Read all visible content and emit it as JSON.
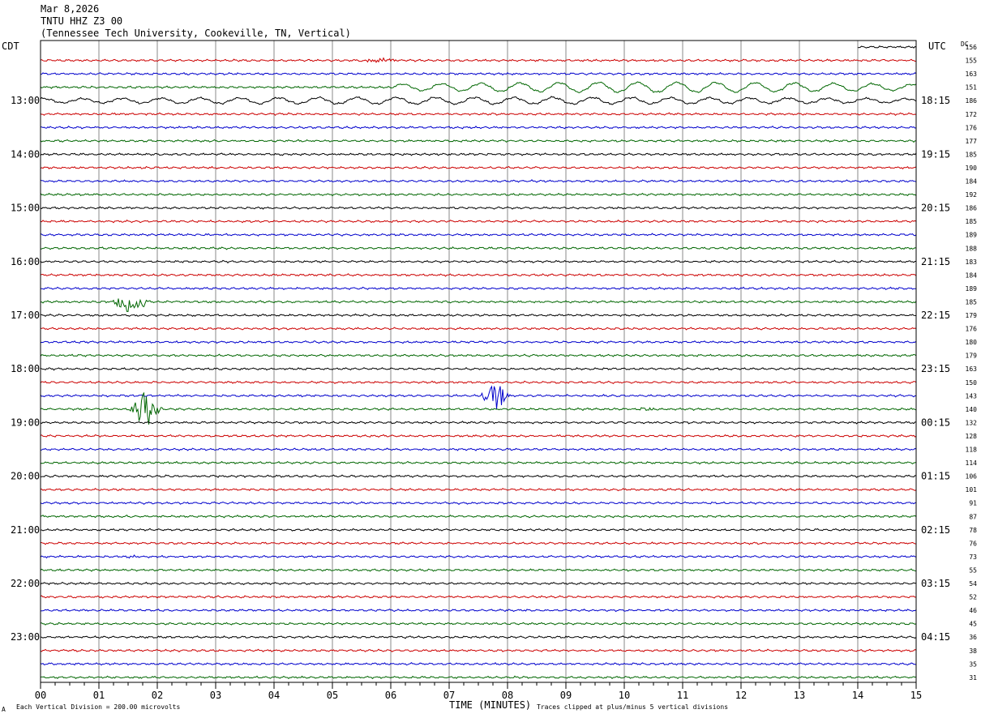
{
  "header": {
    "date": "Mar 8,2026",
    "station": "TNTU HHZ Z3 00",
    "location": "(Tennessee Tech University, Cookeville, TN, Vertical)"
  },
  "labels": {
    "left_tz": "CDT",
    "right_tz": "UTC",
    "dc_header": "DC",
    "xlabel": "TIME (MINUTES)",
    "scale_note": "Each Vertical Division =  200.00 microvolts",
    "clip_note": "Traces clipped at plus/minus 5 vertical divisions",
    "corner_mark": "A"
  },
  "colors": {
    "trace_cycle": [
      "#000000",
      "#cc0000",
      "#0000cc",
      "#006600"
    ],
    "grid": "#888888",
    "frame": "#000000"
  },
  "chart_data": {
    "type": "line",
    "title": "TNTU HHZ Z3 00",
    "xlabel": "TIME (MINUTES)",
    "x_ticks": [
      "00",
      "01",
      "02",
      "03",
      "04",
      "05",
      "06",
      "07",
      "08",
      "09",
      "10",
      "11",
      "12",
      "13",
      "14",
      "15"
    ],
    "xlim": [
      0,
      15
    ],
    "rows": 48,
    "rows_per_hour": 4,
    "minutes_per_row": 15,
    "left_hour_labels": [
      "13:00",
      "14:00",
      "15:00",
      "16:00",
      "17:00",
      "18:00",
      "19:00",
      "20:00",
      "21:00",
      "22:00",
      "23:00"
    ],
    "left_hour_first_row": 4,
    "right_hour_labels": [
      "18:15",
      "19:15",
      "20:15",
      "21:15",
      "22:15",
      "23:15",
      "00:15",
      "01:15",
      "02:15",
      "03:15",
      "04:15"
    ],
    "dc_values": [
      156,
      155,
      163,
      151,
      186,
      172,
      176,
      177,
      185,
      190,
      184,
      192,
      186,
      185,
      189,
      188,
      183,
      184,
      189,
      185,
      179,
      176,
      180,
      179,
      163,
      150,
      143,
      140,
      132,
      128,
      118,
      114,
      106,
      101,
      91,
      87,
      78,
      76,
      73,
      55,
      54,
      52,
      46,
      45,
      36,
      38,
      35,
      31
    ],
    "noise_amplitude": 1.2,
    "events": [
      {
        "row": 1,
        "start_min": 5.4,
        "end_min": 6.2,
        "amplitude": 2.5
      },
      {
        "row": 3,
        "start_min": 6.0,
        "end_min": 15.0,
        "amplitude": 6.0
      },
      {
        "row": 4,
        "start_min": 0.0,
        "end_min": 15.0,
        "amplitude": 4.0
      },
      {
        "row": 19,
        "start_min": 1.2,
        "end_min": 1.9,
        "amplitude": 14.0
      },
      {
        "row": 26,
        "start_min": 7.5,
        "end_min": 8.1,
        "amplitude": 16.0
      },
      {
        "row": 27,
        "start_min": 1.5,
        "end_min": 2.1,
        "amplitude": 20.0
      },
      {
        "row": 27,
        "start_min": 10.2,
        "end_min": 10.6,
        "amplitude": 2.0
      },
      {
        "row": 38,
        "start_min": 1.3,
        "end_min": 1.7,
        "amplitude": 2.0
      }
    ],
    "partial_first_row_start_min": 14.0
  }
}
